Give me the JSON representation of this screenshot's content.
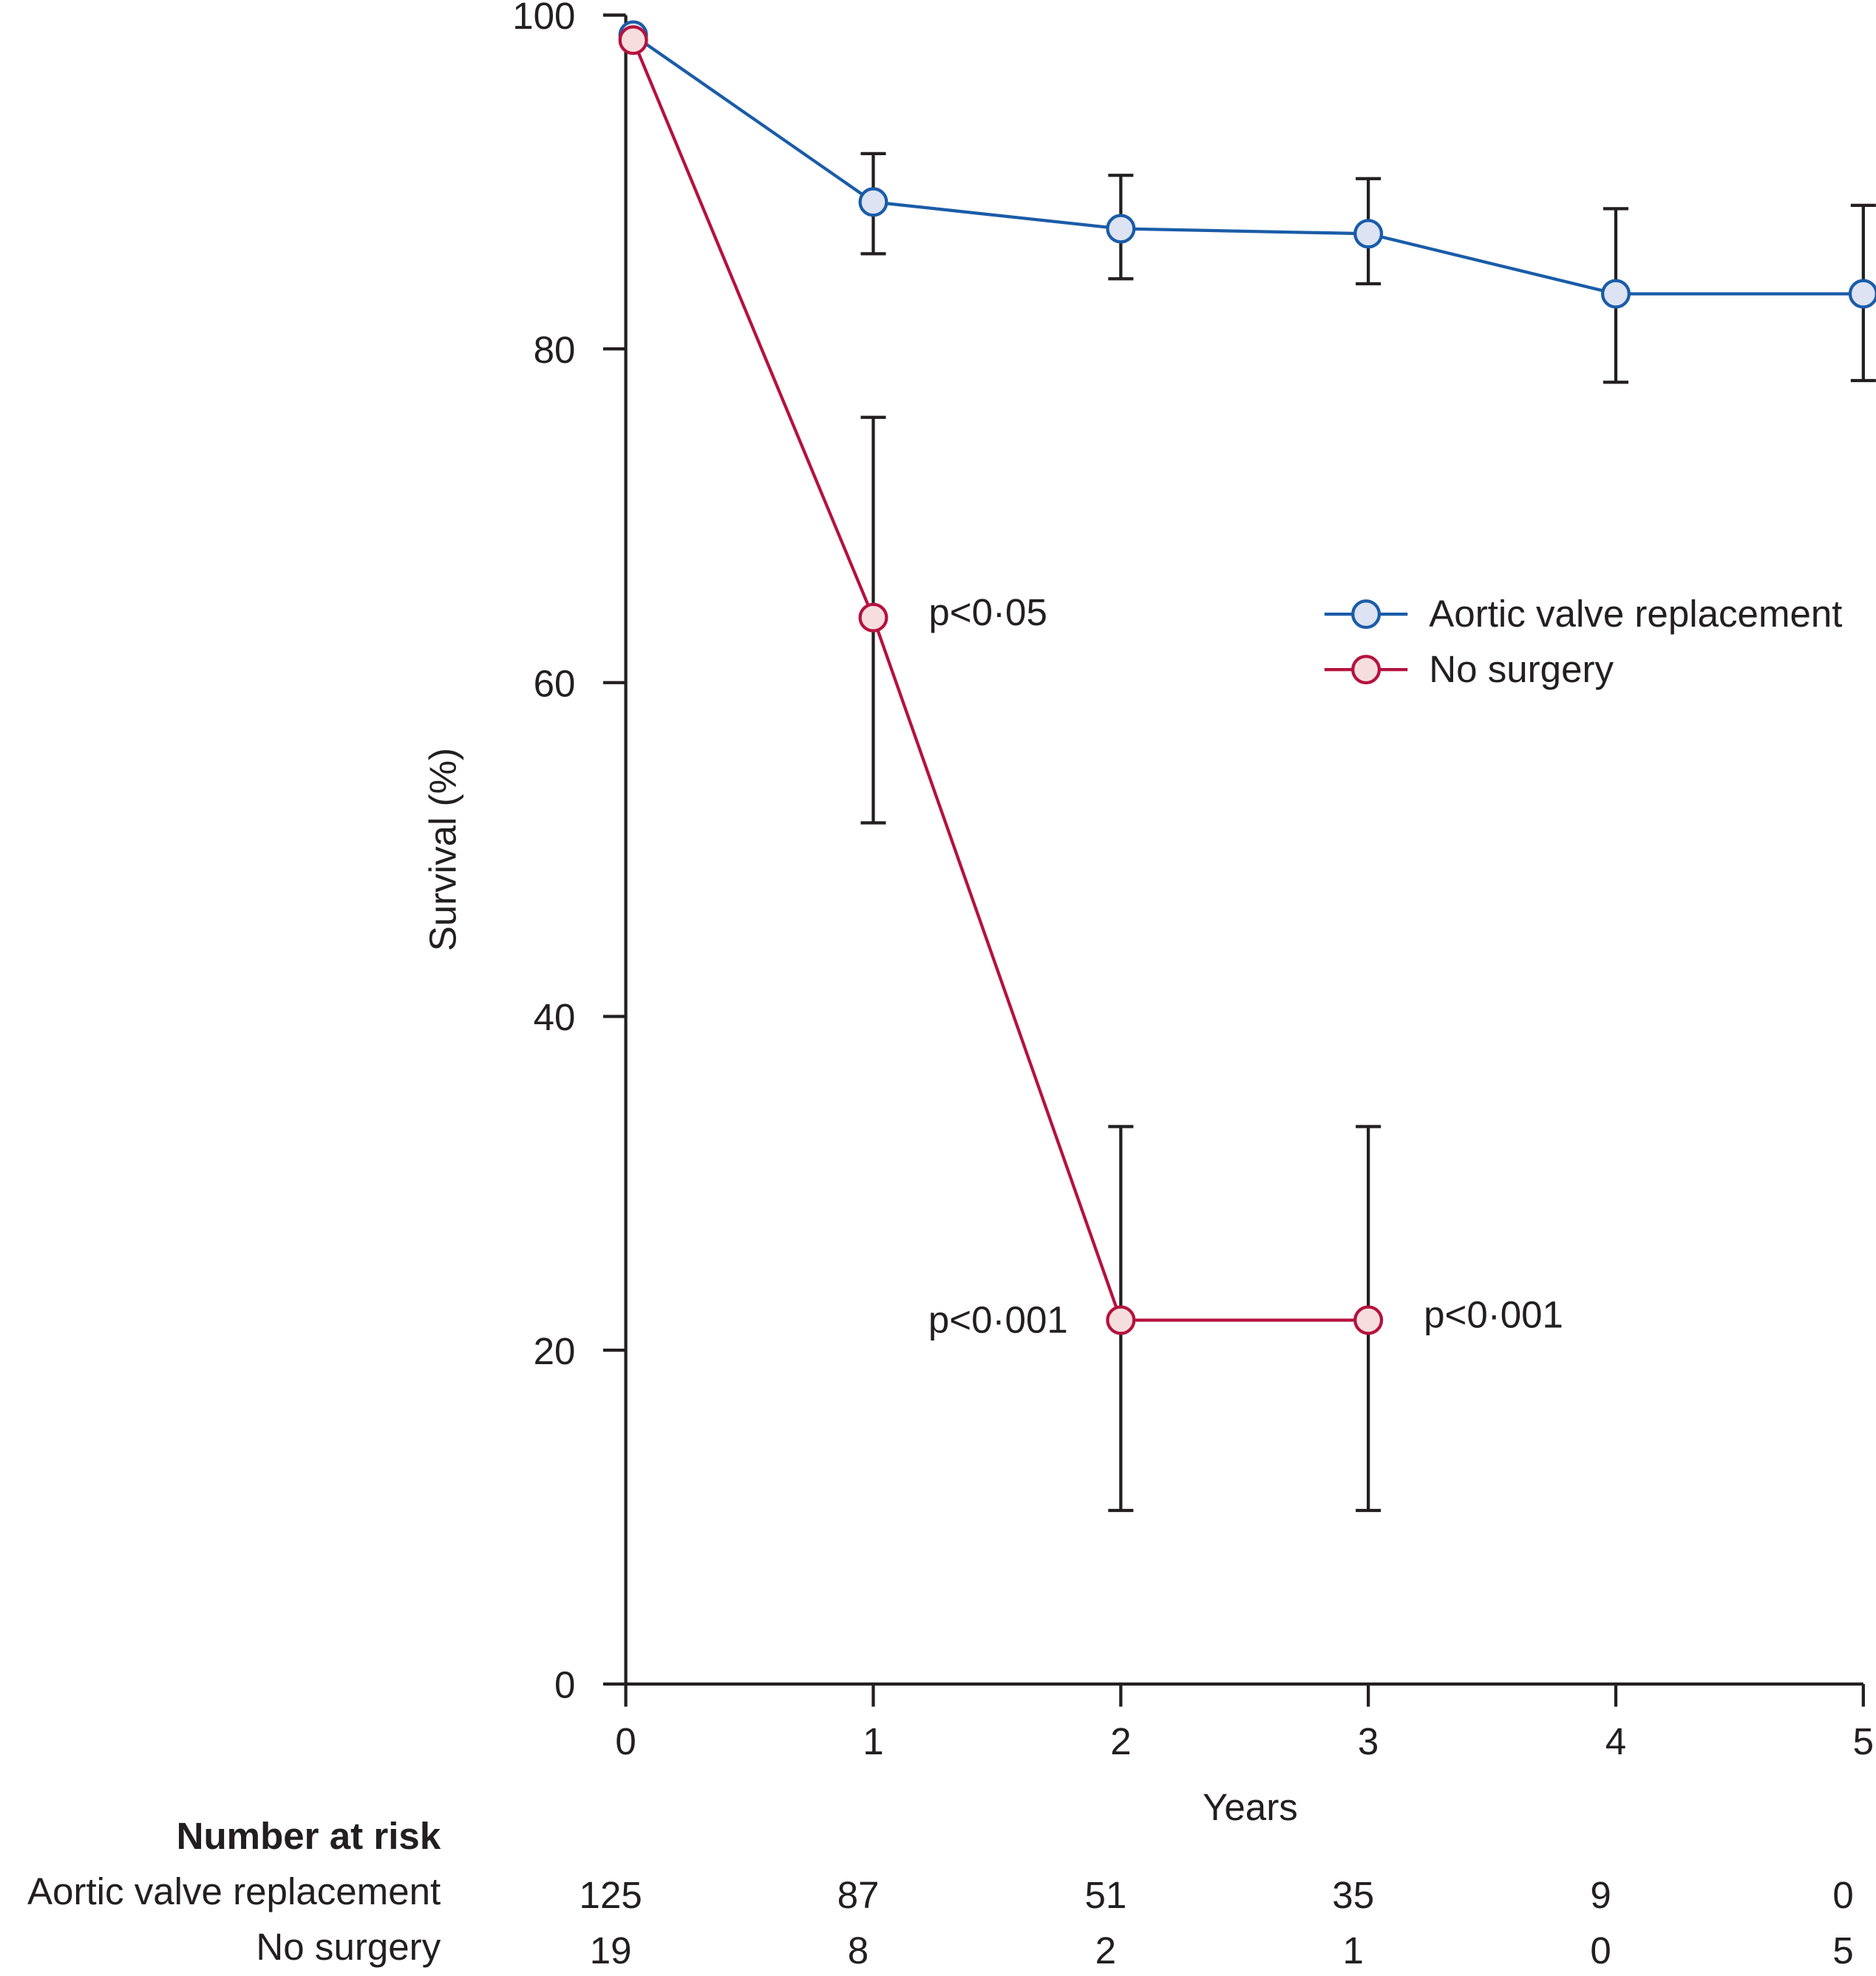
{
  "chart_data": {
    "type": "line",
    "xlabel": "Years",
    "ylabel": "Survival (%)",
    "xlim": [
      0,
      5
    ],
    "ylim": [
      0,
      100
    ],
    "xticks": [
      "0",
      "1",
      "2",
      "3",
      "4",
      "5"
    ],
    "yticks": [
      "0",
      "20",
      "40",
      "60",
      "80",
      "100"
    ],
    "grid": false,
    "legend_placement": "right-middle",
    "series": [
      {
        "name": "Aortic valve replacement",
        "color": "#1a5ca8",
        "fill": "#dde3f2",
        "points": [
          {
            "x": 0.03,
            "y": 98.8
          },
          {
            "x": 1,
            "y": 88.8,
            "ci": [
              85.7,
              91.7
            ]
          },
          {
            "x": 2,
            "y": 87.2,
            "ci": [
              84.2,
              90.4
            ]
          },
          {
            "x": 3,
            "y": 86.9,
            "ci": [
              83.9,
              90.2
            ]
          },
          {
            "x": 4,
            "y": 83.3,
            "ci": [
              78.0,
              88.4
            ]
          },
          {
            "x": 5,
            "y": 83.3,
            "ci": [
              78.1,
              88.6
            ]
          }
        ]
      },
      {
        "name": "No surgery",
        "color": "#b5123f",
        "fill": "#f6dede",
        "points": [
          {
            "x": 0.03,
            "y": 98.5
          },
          {
            "x": 1,
            "y": 63.9,
            "ci": [
              51.6,
              75.9
            ]
          },
          {
            "x": 2,
            "y": 21.8,
            "ci": [
              10.4,
              33.4
            ]
          },
          {
            "x": 3,
            "y": 21.8,
            "ci": [
              10.4,
              33.4
            ]
          }
        ]
      }
    ],
    "annotations": [
      {
        "text": "p<0·05",
        "x": 1,
        "y": 63.9,
        "side": "right"
      },
      {
        "text": "p<0·001",
        "x": 2,
        "y": 21.8,
        "side": "left"
      },
      {
        "text": "p<0·001",
        "x": 3,
        "y": 21.8,
        "side": "right"
      }
    ],
    "risk_table": {
      "title": "Number at risk",
      "rows": [
        {
          "label": "Aortic valve replacement",
          "values": [
            "125",
            "87",
            "51",
            "35",
            "9",
            "0"
          ]
        },
        {
          "label": "No surgery",
          "values": [
            "19",
            "8",
            "2",
            "1",
            "0",
            "5"
          ]
        }
      ]
    }
  }
}
